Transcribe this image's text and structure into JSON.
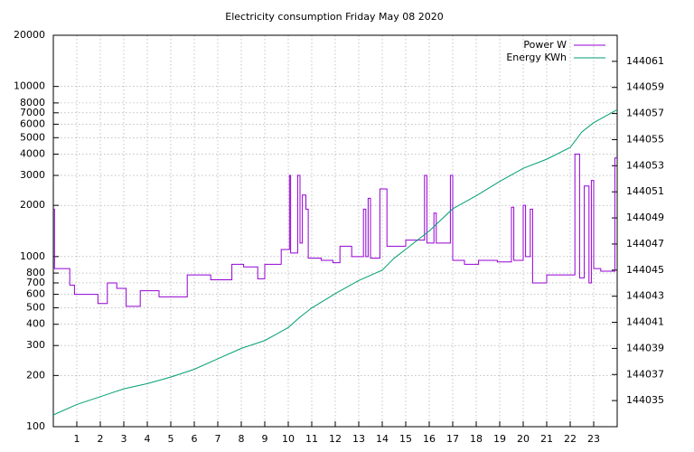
{
  "chart_data": {
    "type": "line",
    "title": "Electricity consumption Friday May 08 2020",
    "xlim": [
      0,
      24
    ],
    "xticks": [
      1,
      2,
      3,
      4,
      5,
      6,
      7,
      8,
      9,
      10,
      11,
      12,
      13,
      14,
      15,
      16,
      17,
      18,
      19,
      20,
      21,
      22,
      23
    ],
    "ylim": [
      100,
      20000
    ],
    "yscale": "log",
    "yticks": [
      100,
      200,
      300,
      400,
      500,
      600,
      700,
      800,
      1000,
      2000,
      3000,
      4000,
      5000,
      6000,
      7000,
      8000,
      10000,
      20000
    ],
    "y2lim": [
      144033,
      144063
    ],
    "y2ticks": [
      144035,
      144037,
      144039,
      144041,
      144043,
      144045,
      144047,
      144049,
      144051,
      144053,
      144055,
      144057,
      144059,
      144061
    ],
    "grid": true,
    "legend": "top-right",
    "series": [
      {
        "name": "Power W",
        "color": "#9400d3",
        "x": [
          0,
          0.05,
          0.05,
          0.7,
          0.7,
          0.9,
          0.9,
          1.9,
          1.9,
          2.3,
          2.3,
          2.7,
          2.7,
          3.1,
          3.1,
          3.7,
          3.7,
          4.5,
          4.5,
          5.7,
          5.7,
          6.7,
          6.7,
          7.6,
          7.6,
          8.1,
          8.1,
          8.7,
          8.7,
          9,
          9,
          9.7,
          9.7,
          10.05,
          10.05,
          10.1,
          10.1,
          10.4,
          10.4,
          10.5,
          10.5,
          10.6,
          10.6,
          10.75,
          10.75,
          10.85,
          10.85,
          11.4,
          11.4,
          11.9,
          11.9,
          12.2,
          12.2,
          12.7,
          12.7,
          13.2,
          13.2,
          13.3,
          13.3,
          13.4,
          13.4,
          13.5,
          13.5,
          13.9,
          13.9,
          14.2,
          14.2,
          15,
          15,
          15.8,
          15.8,
          15.9,
          15.9,
          16.2,
          16.2,
          16.3,
          16.3,
          16.9,
          16.9,
          17,
          17,
          17.5,
          17.5,
          18.1,
          18.1,
          18.9,
          18.9,
          19.5,
          19.5,
          19.6,
          19.6,
          20,
          20,
          20.1,
          20.1,
          20.3,
          20.3,
          20.4,
          20.4,
          21,
          21,
          22.2,
          22.2,
          22.4,
          22.4,
          22.6,
          22.6,
          22.8,
          22.8,
          22.9,
          22.9,
          23,
          23,
          23.3,
          23.3,
          23.9,
          23.9,
          24
        ],
        "values": [
          1900,
          1900,
          850,
          850,
          680,
          680,
          600,
          600,
          530,
          530,
          700,
          700,
          650,
          650,
          510,
          510,
          630,
          630,
          580,
          580,
          780,
          780,
          730,
          730,
          900,
          900,
          870,
          870,
          740,
          740,
          900,
          900,
          1100,
          1100,
          3000,
          3000,
          1050,
          1050,
          3000,
          3000,
          1200,
          1200,
          2300,
          2300,
          1900,
          1900,
          980,
          980,
          950,
          950,
          920,
          920,
          1150,
          1150,
          1000,
          1000,
          1900,
          1900,
          1000,
          1000,
          2200,
          2200,
          980,
          980,
          2500,
          2500,
          1150,
          1150,
          1250,
          1250,
          3000,
          3000,
          1200,
          1200,
          1800,
          1800,
          1200,
          1200,
          3000,
          3000,
          950,
          950,
          900,
          900,
          950,
          950,
          930,
          930,
          1950,
          1950,
          950,
          950,
          2000,
          2000,
          1000,
          1000,
          1900,
          1900,
          700,
          700,
          780,
          780,
          4000,
          4000,
          750,
          750,
          2600,
          2600,
          700,
          700,
          2800,
          2800,
          850,
          850,
          820,
          820,
          3800,
          3800
        ]
      },
      {
        "name": "Energy KWh",
        "color": "#009e73",
        "axis": "y2",
        "x": [
          0,
          1,
          2,
          3,
          4,
          5,
          6,
          7,
          8,
          9,
          9.5,
          10,
          10.5,
          11,
          12,
          13,
          14,
          14.5,
          15,
          16,
          17,
          18,
          19,
          20,
          21,
          22,
          22.5,
          23,
          24
        ],
        "values": [
          144033.9,
          144034.7,
          144035.3,
          144035.9,
          144036.3,
          144036.8,
          144037.4,
          144038.2,
          144039.0,
          144039.6,
          144040.1,
          144040.6,
          144041.4,
          144042.1,
          144043.2,
          144044.2,
          144045.0,
          144045.9,
          144046.6,
          144048.0,
          144049.7,
          144050.7,
          144051.8,
          144052.8,
          144053.5,
          144054.4,
          144055.6,
          144056.3,
          144057.3
        ]
      }
    ]
  }
}
